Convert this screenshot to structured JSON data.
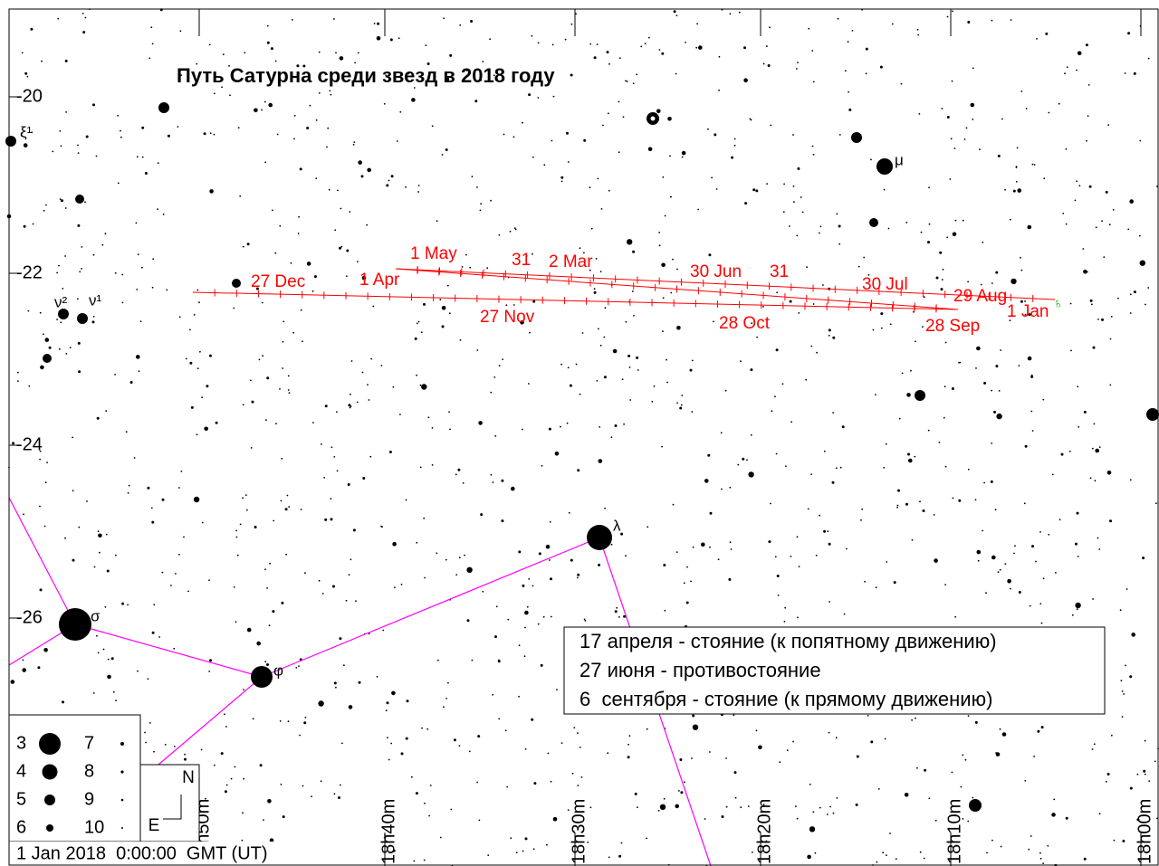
{
  "title": "Путь Сатурна среди звезд в 2018 году",
  "declination_labels": [
    "-20",
    "-22",
    "-24",
    "-26"
  ],
  "ra_labels": [
    "18h50m",
    "18h40m",
    "18h30m",
    "18h20m",
    "18h10m",
    "18h00m"
  ],
  "star_labels": [
    "ξ¹",
    "ν²",
    "ν¹",
    "μ",
    "λ",
    "σ",
    "φ"
  ],
  "path_labels": [
    "27 Dec",
    "1 Apr",
    "1 May",
    "31",
    "2 Mar",
    "30 Jun",
    "31",
    "30 Jul",
    "29 Aug",
    "1 Jan",
    "27 Nov",
    "28 Oct",
    "28 Sep"
  ],
  "saturn_symbol": "♄",
  "notes": [
    "17 апреля - стояние (к попятному движению)",
    "27 июня - противостояние",
    "6  сентября - стояние (к прямому движению)"
  ],
  "legend": {
    "magnitudes": [
      "3",
      "4",
      "5",
      "6",
      "7",
      "8",
      "9",
      "10"
    ]
  },
  "compass": {
    "north": "N",
    "east": "E"
  },
  "timestamp": "1 Jan 2018  0:00:00  GMT (UT)"
}
